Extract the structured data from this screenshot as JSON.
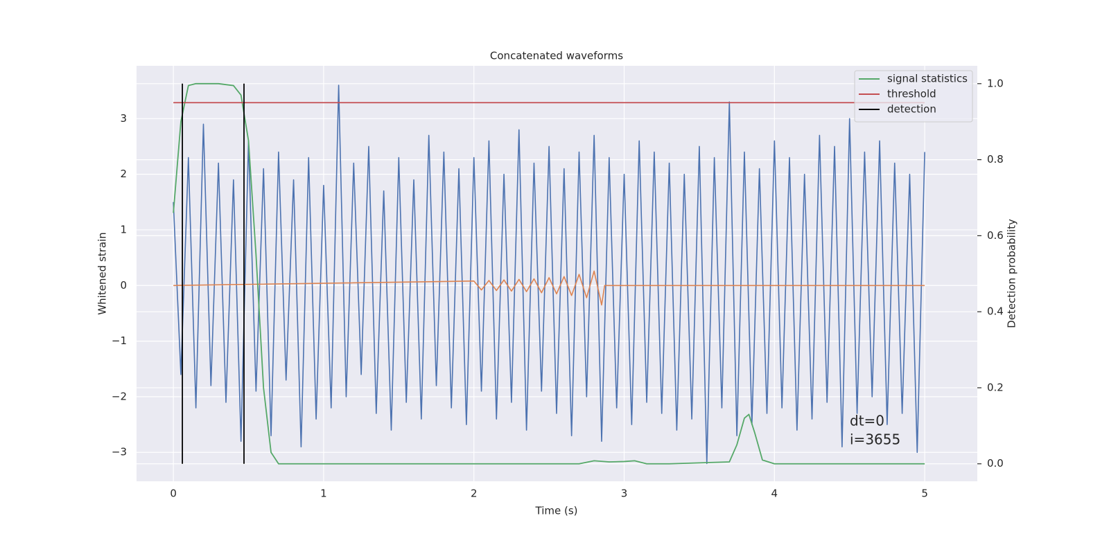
{
  "chart_data": {
    "type": "line",
    "title": "Concatenated waveforms",
    "x_label": "Time (s)",
    "y_label": "Whitened strain",
    "y2_label": "Detection probability",
    "annotations": [
      "dt=0",
      "i=3655"
    ],
    "grid": true,
    "legend": "upper right",
    "xlim": [
      -0.245,
      5.35
    ],
    "ylim": [
      -3.52,
      3.95
    ],
    "y2lim": [
      -0.046,
      1.047
    ],
    "xticks": [
      0,
      1,
      2,
      3,
      4,
      5
    ],
    "yticks": [
      {
        "value": -3,
        "label": "−3"
      },
      {
        "value": -2,
        "label": "−2"
      },
      {
        "value": -1,
        "label": "−1"
      },
      0,
      1,
      2,
      3
    ],
    "y2ticks": [
      {
        "value": 0,
        "label": "0.0"
      },
      0.2,
      0.4,
      0.6,
      0.8,
      {
        "value": 1,
        "label": "1.0"
      }
    ],
    "series": [
      {
        "color": "#4c72b0",
        "axis": "y",
        "x": [
          0,
          0.05,
          0.1,
          0.15,
          0.2,
          0.25,
          0.3,
          0.35,
          0.4,
          0.45,
          0.5,
          0.55,
          0.6,
          0.65,
          0.7,
          0.75,
          0.8,
          0.85,
          0.9,
          0.95,
          1,
          1.05,
          1.1,
          1.15,
          1.2,
          1.25,
          1.3,
          1.35,
          1.4,
          1.45,
          1.5,
          1.55,
          1.6,
          1.65,
          1.7,
          1.75,
          1.8,
          1.85,
          1.9,
          1.95,
          2,
          2.05,
          2.1,
          2.15,
          2.2,
          2.25,
          2.3,
          2.35,
          2.4,
          2.45,
          2.5,
          2.55,
          2.6,
          2.65,
          2.7,
          2.75,
          2.8,
          2.85,
          2.9,
          2.95,
          3,
          3.05,
          3.1,
          3.15,
          3.2,
          3.25,
          3.3,
          3.35,
          3.4,
          3.45,
          3.5,
          3.55,
          3.6,
          3.65,
          3.7,
          3.75,
          3.8,
          3.85,
          3.9,
          3.95,
          4,
          4.05,
          4.1,
          4.15,
          4.2,
          4.25,
          4.3,
          4.35,
          4.4,
          4.45,
          4.5,
          4.55,
          4.6,
          4.65,
          4.7,
          4.75,
          4.8,
          4.85,
          4.9,
          4.95,
          5
        ],
        "values": [
          1.5,
          -1.6,
          2.3,
          -2.2,
          2.9,
          -1.8,
          2.2,
          -2.1,
          1.9,
          -2.8,
          2.6,
          -1.9,
          2.1,
          -2.7,
          2.4,
          -1.7,
          1.9,
          -2.9,
          2.3,
          -2.4,
          1.8,
          -2.2,
          3.6,
          -2.0,
          2.2,
          -1.6,
          2.5,
          -2.3,
          1.7,
          -2.6,
          2.3,
          -2.1,
          1.9,
          -2.4,
          2.7,
          -1.8,
          2.4,
          -2.2,
          2.1,
          -2.5,
          2.3,
          -1.9,
          2.6,
          -2.4,
          2.0,
          -2.1,
          2.8,
          -2.6,
          2.2,
          -1.9,
          2.5,
          -2.3,
          2.1,
          -2.7,
          2.4,
          -2.0,
          2.7,
          -2.8,
          2.3,
          -2.2,
          2.0,
          -2.5,
          2.6,
          -2.1,
          2.4,
          -2.3,
          2.2,
          -2.6,
          2.0,
          -2.4,
          2.5,
          -3.2,
          2.3,
          -2.2,
          3.3,
          -2.7,
          2.4,
          -2.5,
          2.1,
          -2.3,
          2.6,
          -2.2,
          2.3,
          -2.6,
          2.0,
          -2.4,
          2.7,
          -2.1,
          2.5,
          -2.9,
          3.0,
          -2.3,
          2.4,
          -2.0,
          2.6,
          -2.5,
          2.2,
          -2.3,
          2.0,
          -3.0,
          2.4
        ]
      },
      {
        "color": "#dd8452",
        "axis": "y",
        "x": [
          0,
          2,
          2.05,
          2.1,
          2.15,
          2.2,
          2.25,
          2.3,
          2.35,
          2.4,
          2.45,
          2.5,
          2.55,
          2.6,
          2.65,
          2.7,
          2.75,
          2.8,
          2.85,
          2.87,
          5
        ],
        "values": [
          0,
          0.08,
          -0.08,
          0.09,
          -0.09,
          0.1,
          -0.1,
          0.11,
          -0.11,
          0.12,
          -0.13,
          0.14,
          -0.15,
          0.16,
          -0.18,
          0.2,
          -0.22,
          0.26,
          -0.35,
          0,
          0
        ]
      },
      {
        "name": "signal statistics",
        "color": "#55a868",
        "axis": "y2",
        "x": [
          0,
          0.05,
          0.1,
          0.15,
          0.3,
          0.4,
          0.45,
          0.5,
          0.55,
          0.6,
          0.65,
          0.7,
          1,
          2,
          2.7,
          2.8,
          2.9,
          3,
          3.07,
          3.15,
          3.3,
          3.7,
          3.75,
          3.8,
          3.83,
          3.87,
          3.92,
          4,
          5
        ],
        "values": [
          0.66,
          0.9,
          0.995,
          1,
          1,
          0.995,
          0.97,
          0.85,
          0.55,
          0.2,
          0.03,
          0,
          0,
          0,
          0,
          0.008,
          0.005,
          0.006,
          0.008,
          0,
          0,
          0.005,
          0.05,
          0.12,
          0.13,
          0.08,
          0.01,
          0,
          0
        ]
      },
      {
        "name": "threshold",
        "color": "#c44e52",
        "axis": "y2",
        "x": [
          0,
          5
        ],
        "values": [
          0.95,
          0.95
        ]
      },
      {
        "name": "detection",
        "color": "#000000",
        "axis": "y2",
        "x": [
          0.06,
          0.06,
          null,
          0.47,
          0.47
        ],
        "values": [
          0,
          1,
          null,
          0,
          1
        ]
      }
    ]
  }
}
